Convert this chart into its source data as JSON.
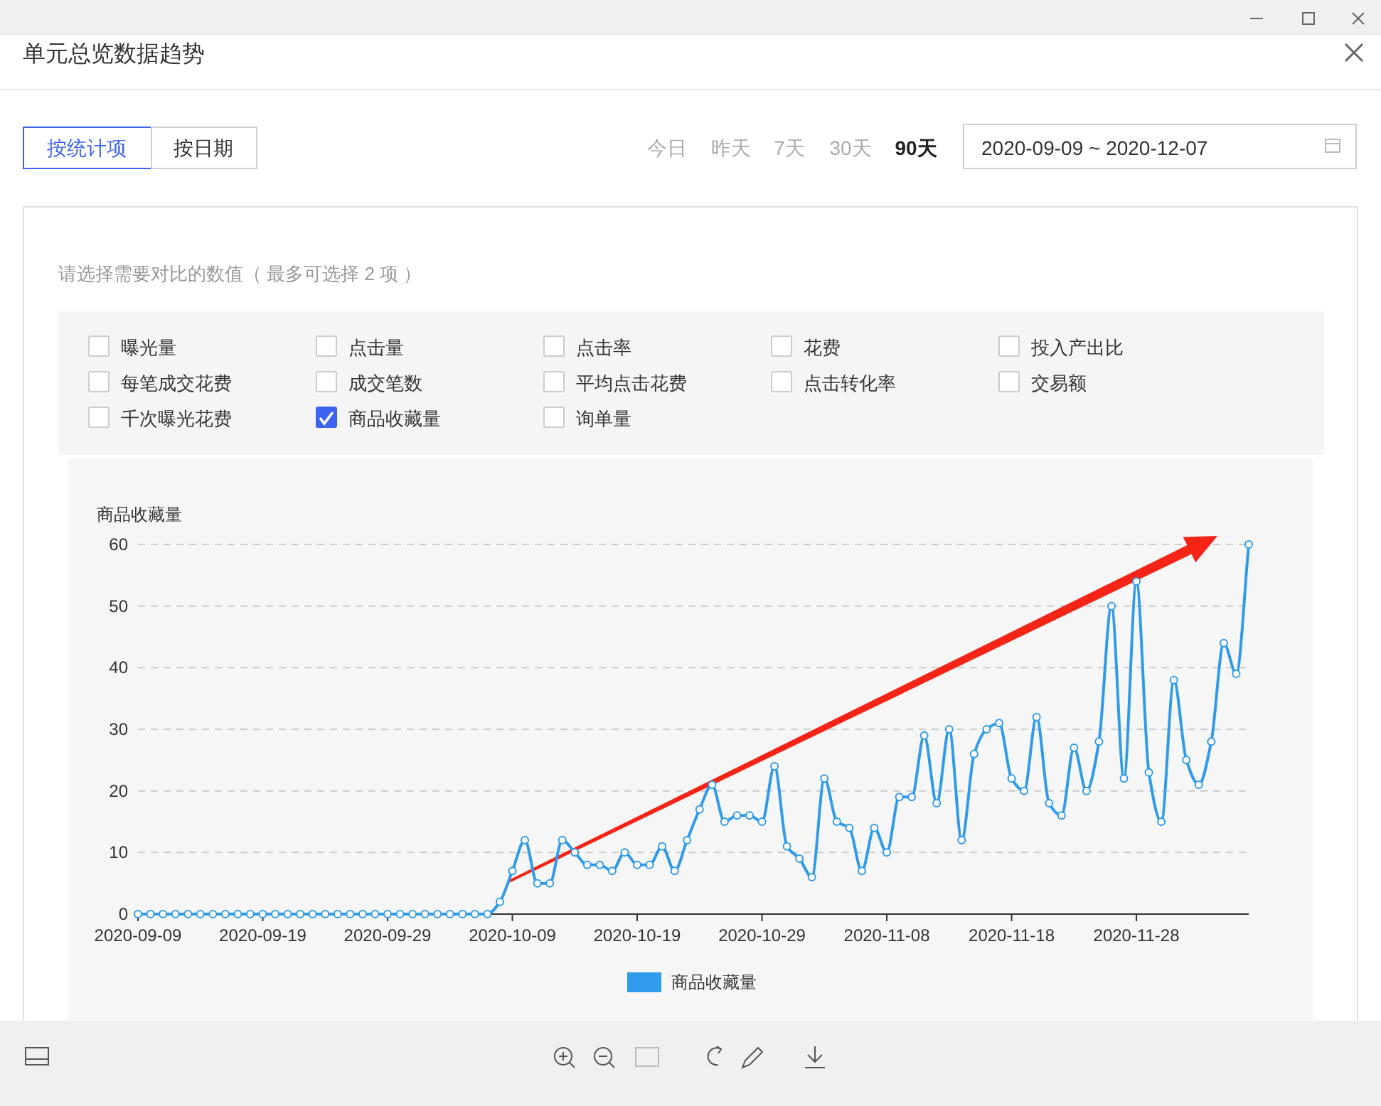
{
  "chart_data": {
    "type": "line",
    "title": "单元总览数据趋势",
    "ylabel": "商品收藏量",
    "x": [
      "2020-09-09",
      "2020-09-10",
      "2020-09-11",
      "2020-09-12",
      "2020-09-13",
      "2020-09-14",
      "2020-09-15",
      "2020-09-16",
      "2020-09-17",
      "2020-09-18",
      "2020-09-19",
      "2020-09-20",
      "2020-09-21",
      "2020-09-22",
      "2020-09-23",
      "2020-09-24",
      "2020-09-25",
      "2020-09-26",
      "2020-09-27",
      "2020-09-28",
      "2020-09-29",
      "2020-09-30",
      "2020-10-01",
      "2020-10-02",
      "2020-10-03",
      "2020-10-04",
      "2020-10-05",
      "2020-10-06",
      "2020-10-07",
      "2020-10-08",
      "2020-10-09",
      "2020-10-10",
      "2020-10-11",
      "2020-10-12",
      "2020-10-13",
      "2020-10-14",
      "2020-10-15",
      "2020-10-16",
      "2020-10-17",
      "2020-10-18",
      "2020-10-19",
      "2020-10-20",
      "2020-10-21",
      "2020-10-22",
      "2020-10-23",
      "2020-10-24",
      "2020-10-25",
      "2020-10-26",
      "2020-10-27",
      "2020-10-28",
      "2020-10-29",
      "2020-10-30",
      "2020-10-31",
      "2020-11-01",
      "2020-11-02",
      "2020-11-03",
      "2020-11-04",
      "2020-11-05",
      "2020-11-06",
      "2020-11-07",
      "2020-11-08",
      "2020-11-09",
      "2020-11-10",
      "2020-11-11",
      "2020-11-12",
      "2020-11-13",
      "2020-11-14",
      "2020-11-15",
      "2020-11-16",
      "2020-11-17",
      "2020-11-18",
      "2020-11-19",
      "2020-11-20",
      "2020-11-21",
      "2020-11-22",
      "2020-11-23",
      "2020-11-24",
      "2020-11-25",
      "2020-11-26",
      "2020-11-27",
      "2020-11-28",
      "2020-11-29",
      "2020-11-30",
      "2020-12-01",
      "2020-12-02",
      "2020-12-03",
      "2020-12-04",
      "2020-12-05",
      "2020-12-06",
      "2020-12-07"
    ],
    "series": [
      {
        "name": "商品收藏量",
        "color": "#2f9bea",
        "values": [
          0,
          0,
          0,
          0,
          0,
          0,
          0,
          0,
          0,
          0,
          0,
          0,
          0,
          0,
          0,
          0,
          0,
          0,
          0,
          0,
          0,
          0,
          0,
          0,
          0,
          0,
          0,
          0,
          0,
          2,
          7,
          12,
          5,
          5,
          12,
          10,
          8,
          8,
          7,
          10,
          8,
          8,
          11,
          7,
          12,
          17,
          21,
          15,
          16,
          16,
          15,
          24,
          11,
          9,
          6,
          22,
          15,
          14,
          7,
          14,
          10,
          19,
          19,
          29,
          18,
          30,
          12,
          26,
          30,
          31,
          22,
          20,
          32,
          18,
          16,
          27,
          20,
          28,
          50,
          22,
          54,
          23,
          15,
          38,
          25,
          21,
          28,
          44,
          39,
          60
        ]
      }
    ],
    "xlim": [
      "2020-09-09",
      "2020-12-07"
    ],
    "xticks": [
      "2020-09-09",
      "2020-09-19",
      "2020-09-29",
      "2020-10-09",
      "2020-10-19",
      "2020-10-29",
      "2020-11-08",
      "2020-11-18",
      "2020-11-28"
    ],
    "ylim": [
      0,
      60
    ],
    "yticks": [
      0,
      10,
      20,
      30,
      40,
      50,
      60
    ],
    "grid": "y",
    "legend": "bottom",
    "marker": "circle",
    "annotations": [
      "按统计项",
      "按日期",
      "今日",
      "昨天",
      "7天",
      "30天",
      "90天",
      "2020-09-09 ~ 2020-12-07",
      "请选择需要对比的数值（ 最多可选择 2 项 ）",
      "曝光量",
      "点击量",
      "点击率",
      "花费",
      "投入产出比",
      "每笔成交花费",
      "成交笔数",
      "平均点击花费",
      "点击转化率",
      "交易额",
      "千次曝光花费",
      "商品收藏量",
      "询单量"
    ]
  }
}
